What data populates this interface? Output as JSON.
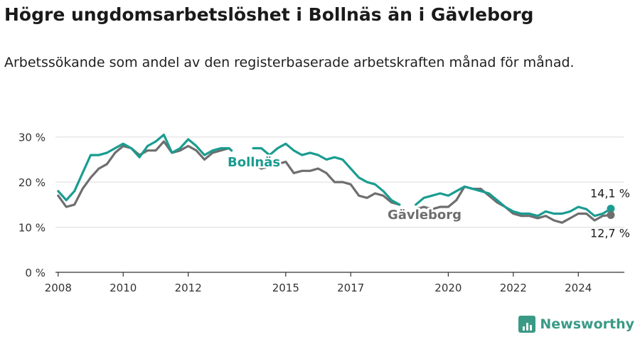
{
  "header": {
    "title": "Högre ungdomsarbetslöshet i Bollnäs än i Gävleborg",
    "subtitle": "Arbetssökande som andel av den registerbaserade arbetskraften månad för månad."
  },
  "brand": {
    "name": "Newsworthy",
    "icon": "newsworthy-logo-icon",
    "color": "#3a9a86"
  },
  "chart_data": {
    "type": "line",
    "title": "Högre ungdomsarbetslöshet i Bollnäs än i Gävleborg",
    "subtitle": "Arbetssökande som andel av den registerbaserade arbetskraften månad för månad.",
    "xlabel": "",
    "ylabel": "",
    "x_ticks": [
      "2008",
      "2010",
      "2012",
      "2015",
      "2017",
      "2020",
      "2022",
      "2024"
    ],
    "y_ticks": [
      "0 %",
      "10 %",
      "20 %",
      "30 %"
    ],
    "ylim": [
      0,
      32
    ],
    "xlim": [
      "2007-12",
      "2025-06"
    ],
    "grid": true,
    "series": [
      {
        "name": "Bollnäs",
        "color": "#1a9c91",
        "end_label": "14,1 %",
        "points": [
          [
            "2008-01",
            18
          ],
          [
            "2008-04",
            16
          ],
          [
            "2008-07",
            18
          ],
          [
            "2008-10",
            22
          ],
          [
            "2009-01",
            26
          ],
          [
            "2009-04",
            26
          ],
          [
            "2009-07",
            26.5
          ],
          [
            "2009-10",
            27.5
          ],
          [
            "2010-01",
            28.5
          ],
          [
            "2010-04",
            27.5
          ],
          [
            "2010-07",
            25.5
          ],
          [
            "2010-10",
            28
          ],
          [
            "2011-01",
            29
          ],
          [
            "2011-04",
            30.5
          ],
          [
            "2011-07",
            26.5
          ],
          [
            "2011-10",
            27.5
          ],
          [
            "2012-01",
            29.5
          ],
          [
            "2012-04",
            28
          ],
          [
            "2012-07",
            26
          ],
          [
            "2012-10",
            27
          ],
          [
            "2013-01",
            27.5
          ],
          [
            "2013-04",
            27.5
          ],
          [
            "2013-05",
            27
          ],
          null,
          [
            "2014-01",
            27.5
          ],
          [
            "2014-04",
            27.5
          ],
          [
            "2014-07",
            26
          ],
          [
            "2014-10",
            27.5
          ],
          [
            "2015-01",
            28.5
          ],
          [
            "2015-04",
            27
          ],
          [
            "2015-07",
            26
          ],
          [
            "2015-10",
            26.5
          ],
          [
            "2016-01",
            26
          ],
          [
            "2016-04",
            25
          ],
          [
            "2016-07",
            25.5
          ],
          [
            "2016-10",
            25
          ],
          [
            "2017-01",
            23
          ],
          [
            "2017-04",
            21
          ],
          [
            "2017-07",
            20
          ],
          [
            "2017-10",
            19.5
          ],
          [
            "2018-01",
            18
          ],
          [
            "2018-04",
            16
          ],
          [
            "2018-07",
            15
          ],
          null,
          [
            "2019-01",
            15
          ],
          [
            "2019-04",
            16.5
          ],
          [
            "2019-07",
            17
          ],
          [
            "2019-10",
            17.5
          ],
          [
            "2020-01",
            17
          ],
          [
            "2020-04",
            18
          ],
          [
            "2020-07",
            19
          ],
          [
            "2020-10",
            18.5
          ],
          [
            "2021-01",
            18
          ],
          [
            "2021-04",
            17.5
          ],
          [
            "2021-07",
            16
          ],
          [
            "2021-10",
            14.5
          ],
          [
            "2022-01",
            13.5
          ],
          [
            "2022-04",
            13
          ],
          [
            "2022-07",
            13
          ],
          [
            "2022-10",
            12.5
          ],
          [
            "2023-01",
            13.5
          ],
          [
            "2023-04",
            13
          ],
          [
            "2023-07",
            13
          ],
          [
            "2023-10",
            13.5
          ],
          [
            "2024-01",
            14.5
          ],
          [
            "2024-04",
            14
          ],
          [
            "2024-07",
            12.5
          ],
          [
            "2024-10",
            13
          ],
          [
            "2025-01",
            14.1
          ]
        ]
      },
      {
        "name": "Gävleborg",
        "color": "#6e6e6e",
        "end_label": "12,7 %",
        "points": [
          [
            "2008-01",
            17
          ],
          [
            "2008-04",
            14.5
          ],
          [
            "2008-07",
            15
          ],
          [
            "2008-10",
            18.5
          ],
          [
            "2009-01",
            21
          ],
          [
            "2009-04",
            23
          ],
          [
            "2009-07",
            24
          ],
          [
            "2009-10",
            26.5
          ],
          [
            "2010-01",
            28
          ],
          [
            "2010-04",
            27.5
          ],
          [
            "2010-07",
            26
          ],
          [
            "2010-10",
            27
          ],
          [
            "2011-01",
            27
          ],
          [
            "2011-04",
            29
          ],
          [
            "2011-07",
            26.5
          ],
          [
            "2011-10",
            27
          ],
          [
            "2012-01",
            28
          ],
          [
            "2012-04",
            27
          ],
          [
            "2012-07",
            25
          ],
          [
            "2012-10",
            26.5
          ],
          [
            "2013-01",
            27
          ],
          [
            "2013-04",
            27.5
          ],
          [
            "2013-05",
            27
          ],
          null,
          [
            "2014-01",
            24
          ],
          [
            "2014-04",
            23
          ],
          [
            "2014-07",
            23.5
          ],
          [
            "2014-10",
            24
          ],
          [
            "2015-01",
            24.5
          ],
          [
            "2015-04",
            22
          ],
          [
            "2015-07",
            22.5
          ],
          [
            "2015-10",
            22.5
          ],
          [
            "2016-01",
            23
          ],
          [
            "2016-04",
            22
          ],
          [
            "2016-07",
            20
          ],
          [
            "2016-10",
            20
          ],
          [
            "2017-01",
            19.5
          ],
          [
            "2017-04",
            17
          ],
          [
            "2017-07",
            16.5
          ],
          [
            "2017-10",
            17.5
          ],
          [
            "2018-01",
            17
          ],
          [
            "2018-04",
            15.5
          ],
          [
            "2018-07",
            15
          ],
          null,
          [
            "2019-01",
            14
          ],
          [
            "2019-04",
            14.5
          ],
          [
            "2019-07",
            14
          ],
          [
            "2019-10",
            14.5
          ],
          [
            "2020-01",
            14.5
          ],
          [
            "2020-04",
            16
          ],
          [
            "2020-07",
            19
          ],
          [
            "2020-10",
            18.5
          ],
          [
            "2021-01",
            18.5
          ],
          [
            "2021-04",
            17
          ],
          [
            "2021-07",
            15.5
          ],
          [
            "2021-10",
            14.5
          ],
          [
            "2022-01",
            13
          ],
          [
            "2022-04",
            12.5
          ],
          [
            "2022-07",
            12.5
          ],
          [
            "2022-10",
            12
          ],
          [
            "2023-01",
            12.5
          ],
          [
            "2023-04",
            11.5
          ],
          [
            "2023-07",
            11
          ],
          [
            "2023-10",
            12
          ],
          [
            "2024-01",
            13
          ],
          [
            "2024-04",
            13
          ],
          [
            "2024-07",
            11.5
          ],
          [
            "2024-10",
            12.5
          ],
          [
            "2025-01",
            12.7
          ]
        ]
      }
    ]
  }
}
